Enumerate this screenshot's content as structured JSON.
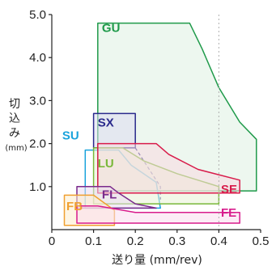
{
  "chart_data": {
    "type": "area",
    "title": "",
    "xlabel": "送り量 (mm/rev)",
    "ylabel": [
      "切",
      "込",
      "み"
    ],
    "yunit": "(mm)",
    "xlim": [
      0,
      0.5
    ],
    "ylim": [
      0,
      5.0
    ],
    "xticks": [
      "0",
      "0.1",
      "0.2",
      "0.3",
      "0.4",
      "0.5"
    ],
    "yticks": [
      "1.0",
      "2.0",
      "3.0",
      "4.0",
      "5.0"
    ],
    "xtick_values": [
      0,
      0.1,
      0.2,
      0.3,
      0.4,
      0.5
    ],
    "ytick_values": [
      1.0,
      2.0,
      3.0,
      4.0,
      5.0
    ],
    "reference_line_x": 0.4,
    "regions": [
      {
        "name": "GU",
        "color": "#1f9a4a",
        "fill": "#dff0e2",
        "boundary": [
          [
            0.11,
            0.9
          ],
          [
            0.11,
            4.8
          ],
          [
            0.33,
            4.8
          ],
          [
            0.36,
            4.2
          ],
          [
            0.4,
            3.3
          ],
          [
            0.45,
            2.5
          ],
          [
            0.49,
            2.1
          ],
          [
            0.49,
            0.9
          ]
        ],
        "label_at": [
          0.12,
          4.6
        ]
      },
      {
        "name": "SX",
        "color": "#2a2a8c",
        "fill": "#dcdcf0",
        "boundary": [
          [
            0.1,
            1.9
          ],
          [
            0.1,
            2.7
          ],
          [
            0.2,
            2.7
          ],
          [
            0.2,
            1.9
          ]
        ],
        "label_at": [
          0.11,
          2.4
        ],
        "dashed_extension": [
          [
            0.2,
            1.9
          ],
          [
            0.26,
            1.0
          ],
          [
            0.26,
            0.7
          ]
        ]
      },
      {
        "name": "SU",
        "color": "#1aa3dc",
        "fill": "none",
        "boundary": [
          [
            0.08,
            0.5
          ],
          [
            0.08,
            1.85
          ],
          [
            0.16,
            1.85
          ],
          [
            0.19,
            1.5
          ],
          [
            0.25,
            1.1
          ],
          [
            0.26,
            0.5
          ]
        ],
        "label_at": [
          0.025,
          2.1
        ]
      },
      {
        "name": "LU",
        "color": "#7ab83a",
        "fill": "#e8f2d6",
        "boundary": [
          [
            0.1,
            0.6
          ],
          [
            0.1,
            1.9
          ],
          [
            0.17,
            1.9
          ],
          [
            0.22,
            1.6
          ],
          [
            0.3,
            1.3
          ],
          [
            0.4,
            1.0
          ],
          [
            0.4,
            0.6
          ]
        ],
        "label_at": [
          0.11,
          1.45
        ]
      },
      {
        "name": "SE",
        "color": "#d81b4a",
        "fill": "#f7dbe0",
        "boundary": [
          [
            0.11,
            0.85
          ],
          [
            0.11,
            2.0
          ],
          [
            0.25,
            2.0
          ],
          [
            0.28,
            1.75
          ],
          [
            0.35,
            1.4
          ],
          [
            0.45,
            1.15
          ],
          [
            0.45,
            0.85
          ]
        ],
        "label_at": [
          0.405,
          0.85
        ]
      },
      {
        "name": "FL",
        "color": "#7a2a8c",
        "fill": "#ebdcf0",
        "boundary": [
          [
            0.06,
            0.5
          ],
          [
            0.06,
            1.0
          ],
          [
            0.14,
            1.0
          ],
          [
            0.16,
            0.85
          ],
          [
            0.2,
            0.6
          ],
          [
            0.25,
            0.5
          ]
        ],
        "label_at": [
          0.12,
          0.72
        ]
      },
      {
        "name": "FB",
        "color": "#f0a030",
        "fill": "#fdeccc",
        "boundary": [
          [
            0.03,
            0.1
          ],
          [
            0.03,
            0.8
          ],
          [
            0.1,
            0.8
          ],
          [
            0.15,
            0.45
          ],
          [
            0.15,
            0.1
          ]
        ],
        "label_at": [
          0.035,
          0.45
        ]
      },
      {
        "name": "FE",
        "color": "#d81b8c",
        "fill": "#f9dcee",
        "boundary": [
          [
            0.06,
            0.15
          ],
          [
            0.06,
            0.55
          ],
          [
            0.11,
            0.55
          ],
          [
            0.2,
            0.4
          ],
          [
            0.45,
            0.4
          ],
          [
            0.45,
            0.15
          ]
        ],
        "label_at": [
          0.405,
          0.3
        ]
      }
    ]
  }
}
